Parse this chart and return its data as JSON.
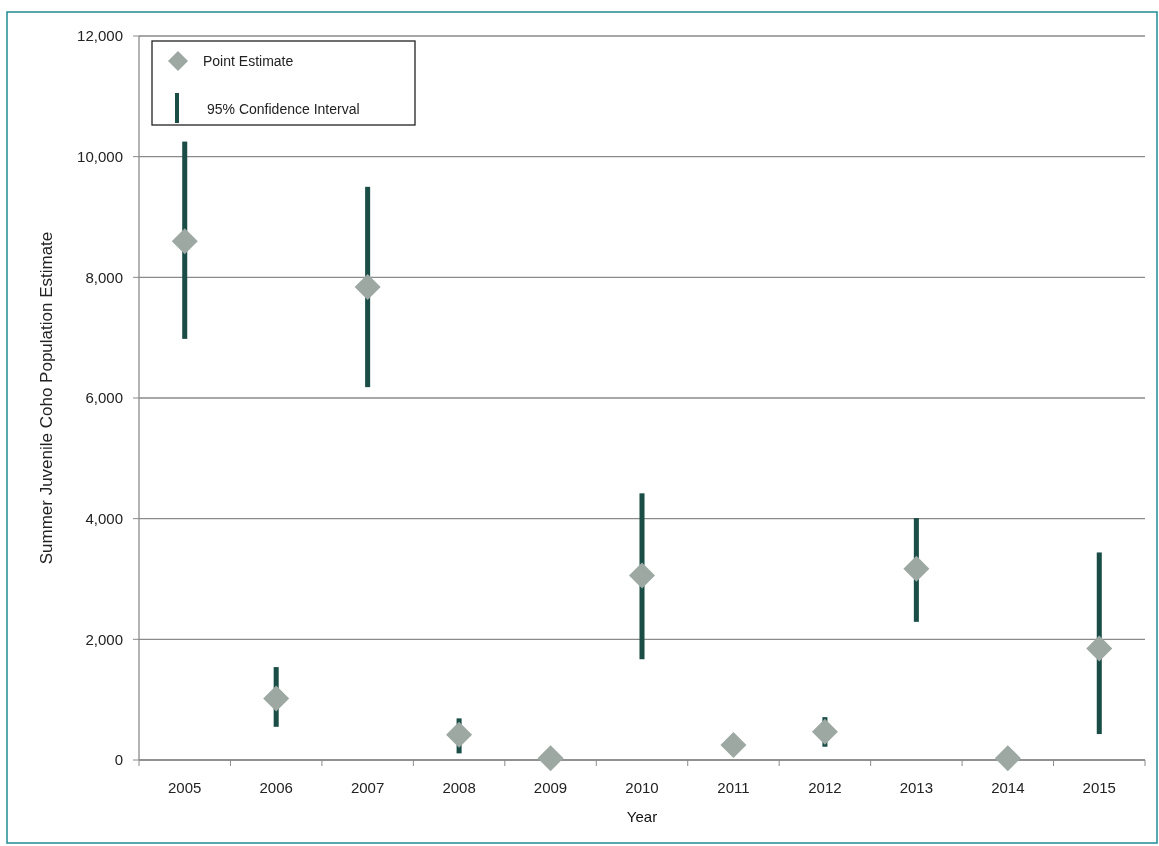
{
  "chart_data": {
    "type": "scatter",
    "xlabel": "Year",
    "ylabel": "Summer Juvenile Coho Population Estimate",
    "categories": [
      "2005",
      "2006",
      "2007",
      "2008",
      "2009",
      "2010",
      "2011",
      "2012",
      "2013",
      "2014",
      "2015"
    ],
    "series": [
      {
        "name": "95% Confidence Interval",
        "type": "bar",
        "color": "#1b4d47",
        "base": [
          6980,
          550,
          6180,
          110,
          null,
          1670,
          null,
          220,
          2290,
          null,
          430
        ],
        "values": [
          3270,
          990,
          3320,
          580,
          null,
          2750,
          null,
          490,
          1720,
          null,
          3010
        ]
      },
      {
        "name": "Point Estimate",
        "color": "#9da8a3",
        "values": [
          8600,
          1020,
          7840,
          420,
          30,
          3060,
          250,
          470,
          3170,
          30,
          1850
        ]
      }
    ],
    "ylim": [
      0,
      12000
    ],
    "yticks": [
      0,
      {
        "value": 2000,
        "label": "2,000"
      },
      {
        "value": 4000,
        "label": "4,000"
      },
      {
        "value": 6000,
        "label": "6,000"
      },
      {
        "value": 8000,
        "label": "8,000"
      },
      {
        "value": 10000,
        "label": "10,000"
      },
      {
        "value": 12000,
        "label": "12,000"
      }
    ],
    "grid": "y",
    "legend": "top left",
    "marker": "diamond"
  }
}
